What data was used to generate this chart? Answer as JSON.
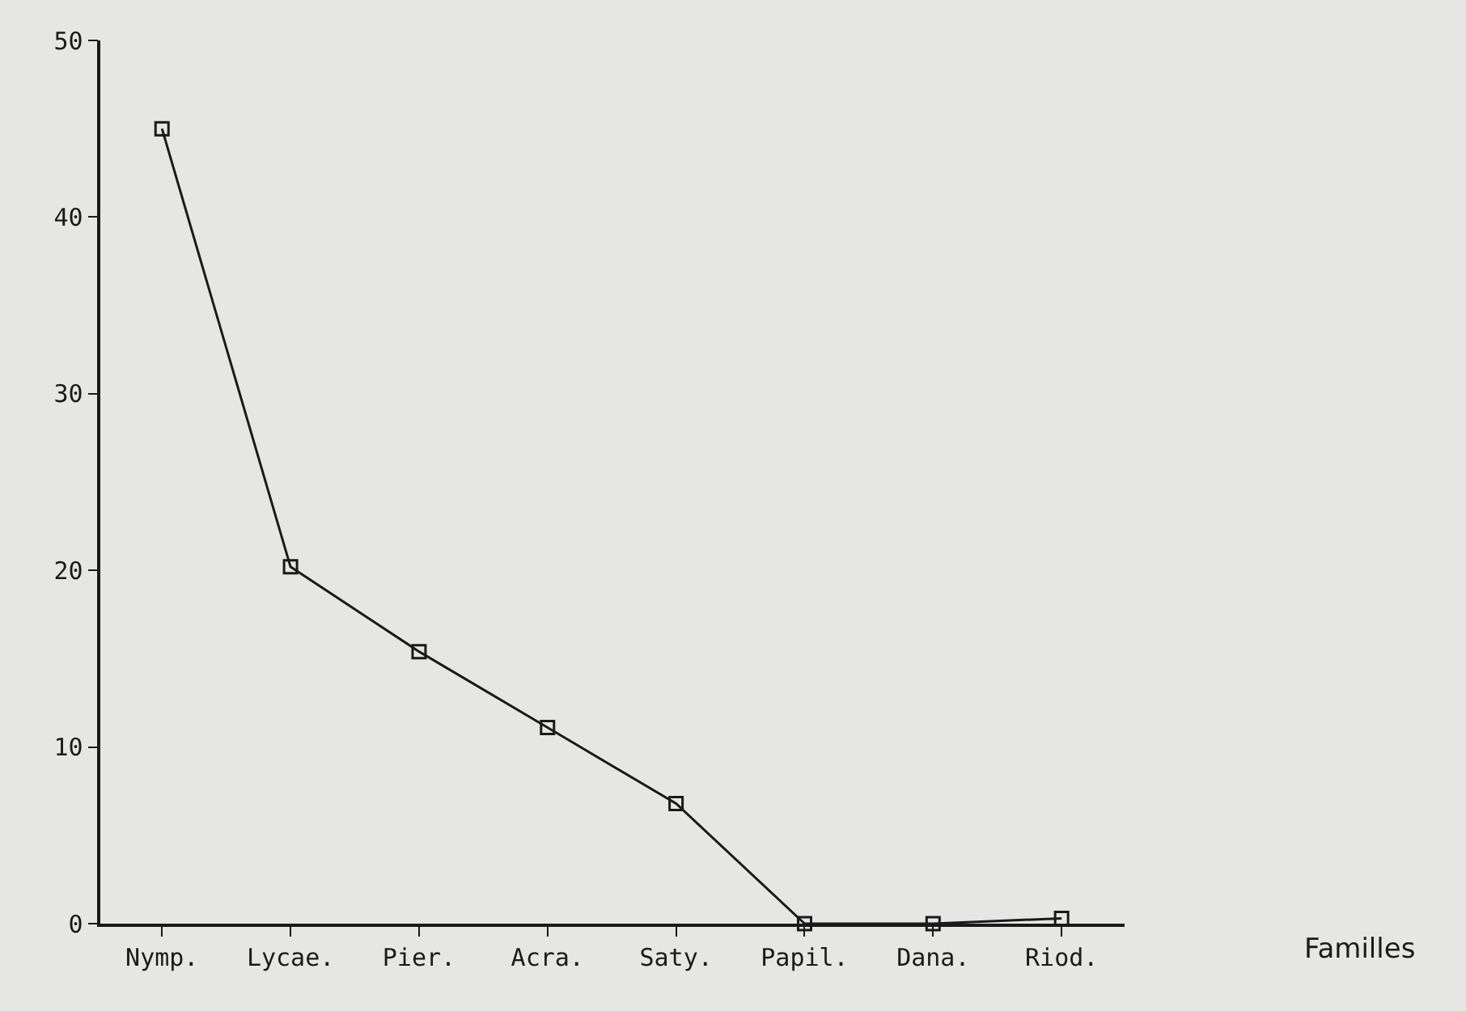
{
  "chart_data": {
    "type": "line",
    "annotations": [
      "Familles"
    ],
    "categories": [
      "Nymp.",
      "Lycae.",
      "Pier.",
      "Acra.",
      "Saty.",
      "Papil.",
      "Dana.",
      "Riod."
    ],
    "series": [
      {
        "color": "#1a1a1a",
        "values": [
          45,
          20.2,
          15.4,
          11.1,
          6.8,
          0,
          0,
          0.3
        ]
      }
    ],
    "ylim": [
      0,
      50
    ],
    "yticks": [
      0,
      10,
      20,
      30,
      40,
      50
    ],
    "grid": false,
    "legend": false,
    "marker": "square",
    "line_style": "solid"
  }
}
